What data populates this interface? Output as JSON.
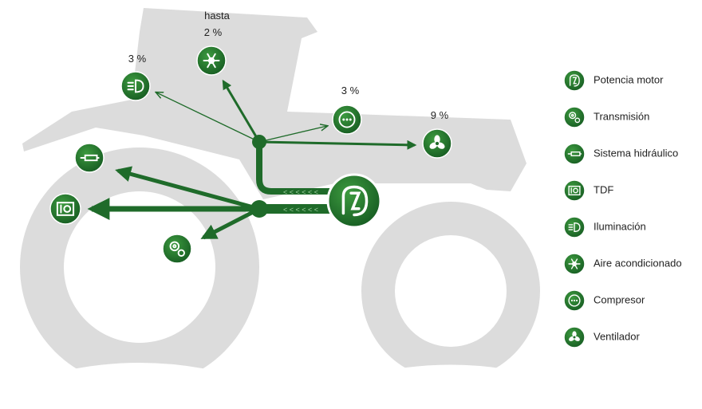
{
  "diagram": {
    "annotations": {
      "iluminacion": "3 %",
      "aire_prefix": "hasta",
      "aire": "2 %",
      "compresor": "3 %",
      "ventilador": "9 %"
    },
    "legend": [
      "Potencia motor",
      "Transmisión",
      "Sistema hidráulico",
      "TDF",
      "Iluminación",
      "Aire acondicionado",
      "Compresor",
      "Ventilador"
    ]
  }
}
